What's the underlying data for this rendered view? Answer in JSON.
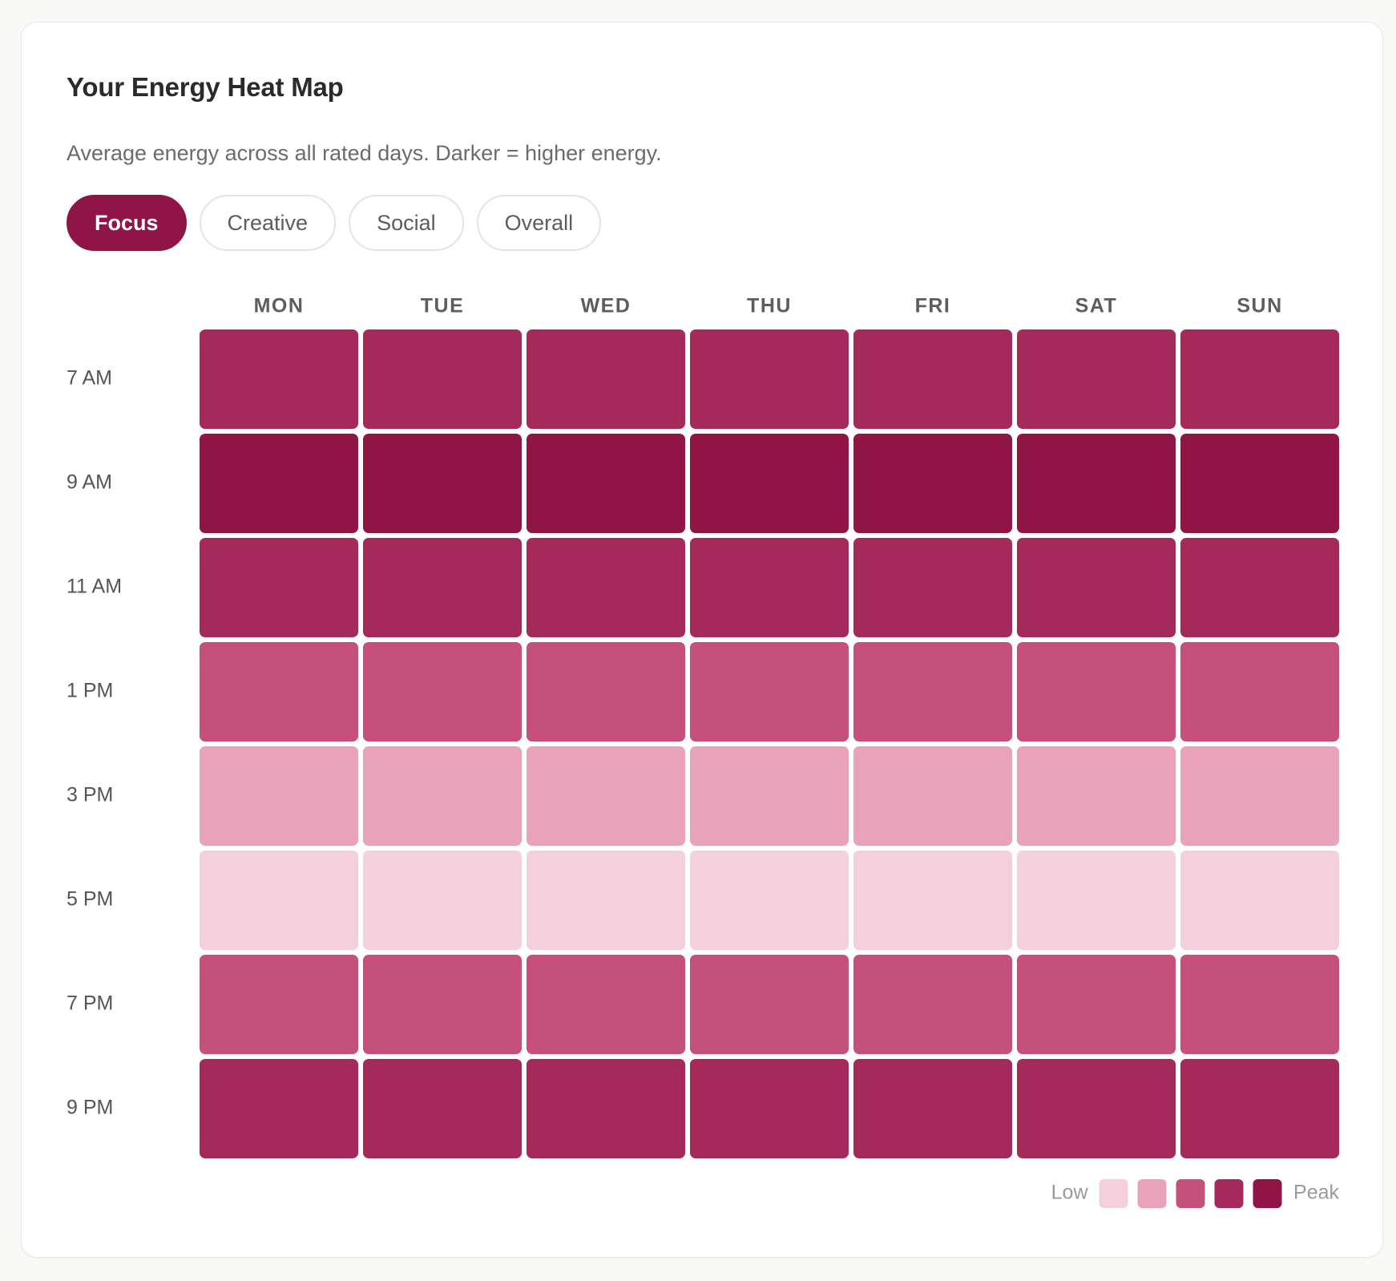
{
  "card": {
    "title": "Your Energy Heat Map",
    "subtitle": "Average energy across all rated days. Darker = higher energy."
  },
  "tabs": [
    {
      "label": "Focus",
      "active": true
    },
    {
      "label": "Creative",
      "active": false
    },
    {
      "label": "Social",
      "active": false
    },
    {
      "label": "Overall",
      "active": false
    }
  ],
  "colors": {
    "accent": "#8f1547",
    "levels": [
      "#f3d0dc",
      "#e8a2b9",
      "#c4507b",
      "#a42a5b",
      "#8f1547"
    ]
  },
  "chart_data": {
    "type": "heatmap",
    "title": "Your Energy Heat Map",
    "x": [
      "MON",
      "TUE",
      "WED",
      "THU",
      "FRI",
      "SAT",
      "SUN"
    ],
    "y": [
      "7 AM",
      "9 AM",
      "11 AM",
      "1 PM",
      "3 PM",
      "5 PM",
      "7 PM",
      "9 PM"
    ],
    "scale": {
      "min": 1,
      "max": 5
    },
    "values": [
      [
        4,
        4,
        4,
        4,
        4,
        4,
        4
      ],
      [
        5,
        5,
        5,
        5,
        5,
        5,
        5
      ],
      [
        4,
        4,
        4,
        4,
        4,
        4,
        4
      ],
      [
        3,
        3,
        3,
        3,
        3,
        3,
        3
      ],
      [
        2,
        2,
        2,
        2,
        2,
        2,
        2
      ],
      [
        1,
        1,
        1,
        1,
        1,
        1,
        1
      ],
      [
        3,
        3,
        3,
        3,
        3,
        3,
        3
      ],
      [
        4,
        4,
        4,
        4,
        4,
        4,
        4
      ]
    ],
    "legend": {
      "low_label": "Low",
      "high_label": "Peak",
      "position": "bottom-right"
    }
  }
}
